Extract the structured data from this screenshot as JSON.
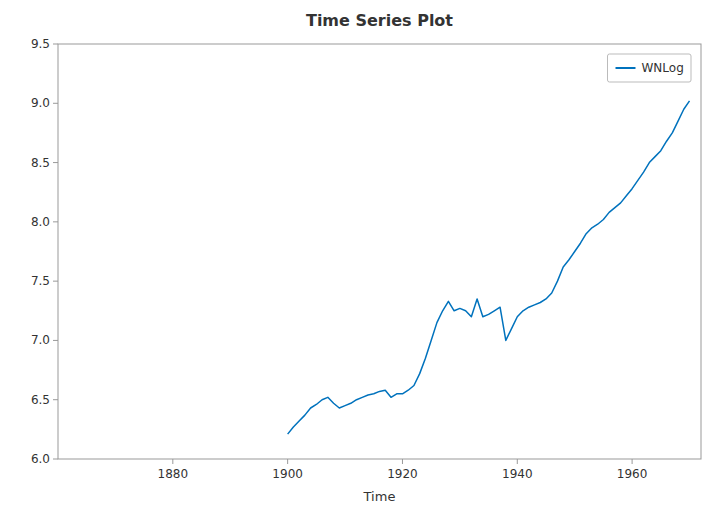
{
  "chart_data": {
    "type": "line",
    "title": "Time Series Plot",
    "xlabel": "Time",
    "x": [
      1900,
      1901,
      1902,
      1903,
      1904,
      1905,
      1906,
      1907,
      1908,
      1909,
      1910,
      1911,
      1912,
      1913,
      1914,
      1915,
      1916,
      1917,
      1918,
      1919,
      1920,
      1921,
      1922,
      1923,
      1924,
      1925,
      1926,
      1927,
      1928,
      1929,
      1930,
      1931,
      1932,
      1933,
      1934,
      1935,
      1936,
      1937,
      1938,
      1939,
      1940,
      1941,
      1942,
      1943,
      1944,
      1945,
      1946,
      1947,
      1948,
      1949,
      1950,
      1951,
      1952,
      1953,
      1954,
      1955,
      1956,
      1957,
      1958,
      1959,
      1960,
      1961,
      1962,
      1963,
      1964,
      1965,
      1966,
      1967,
      1968,
      1969,
      1970
    ],
    "series": [
      {
        "name": "WNLog",
        "color": "#0072BD",
        "values": [
          6.21,
          6.27,
          6.32,
          6.37,
          6.43,
          6.46,
          6.5,
          6.52,
          6.47,
          6.43,
          6.45,
          6.47,
          6.5,
          6.52,
          6.54,
          6.55,
          6.57,
          6.58,
          6.52,
          6.55,
          6.55,
          6.58,
          6.62,
          6.72,
          6.85,
          7.0,
          7.15,
          7.25,
          7.33,
          7.25,
          7.27,
          7.25,
          7.2,
          7.35,
          7.2,
          7.22,
          7.25,
          7.28,
          7.0,
          7.1,
          7.2,
          7.25,
          7.28,
          7.3,
          7.32,
          7.35,
          7.4,
          7.5,
          7.62,
          7.68,
          7.75,
          7.82,
          7.9,
          7.95,
          7.98,
          8.02,
          8.08,
          8.12,
          8.16,
          8.22,
          8.28,
          8.35,
          8.42,
          8.5,
          8.55,
          8.6,
          8.68,
          8.75,
          8.85,
          8.95,
          9.02
        ]
      }
    ],
    "xlim": [
      1860,
      1972
    ],
    "ylim": [
      6,
      9.5
    ],
    "xticks": [
      1880,
      1900,
      1920,
      1940,
      1960
    ],
    "yticks": [
      {
        "value": 6.0,
        "label": "6.0"
      },
      6.5,
      {
        "value": 7.0,
        "label": "7.0"
      },
      7.5,
      {
        "value": 8.0,
        "label": "8.0"
      },
      8.5,
      {
        "value": 9.0,
        "label": "9.0"
      },
      9.5
    ],
    "grid": false,
    "legend": "upper right"
  }
}
